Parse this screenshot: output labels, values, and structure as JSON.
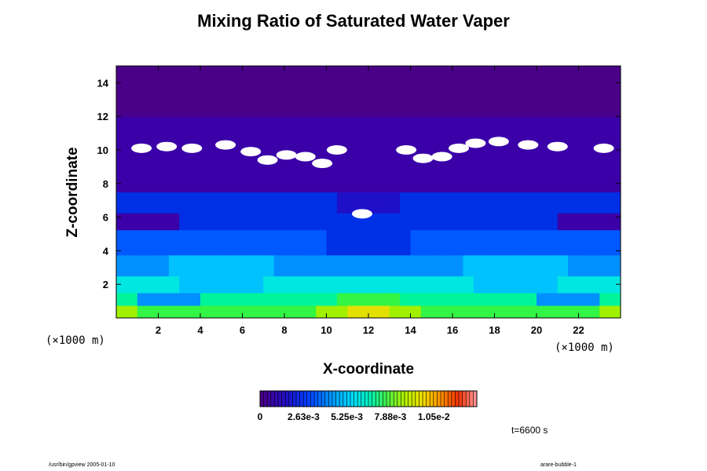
{
  "chart_data": {
    "type": "heatmap",
    "title": "Mixing Ratio of Saturated Water Vaper",
    "xlabel": "X-coordinate",
    "ylabel": "Z-coordinate",
    "x_unit": "(×1000 m)",
    "y_unit": "(×1000 m)",
    "xlim": [
      0,
      24
    ],
    "ylim": [
      0,
      15
    ],
    "x_ticks": [
      "2",
      "4",
      "6",
      "8",
      "10",
      "12",
      "14",
      "16",
      "18",
      "20",
      "22"
    ],
    "y_ticks": [
      "2",
      "4",
      "6",
      "8",
      "10",
      "12",
      "14"
    ],
    "colorbar": {
      "min": 0,
      "max": 0.0131,
      "labels": [
        "0",
        "2.63e-3",
        "5.25e-3",
        "7.88e-3",
        "1.05e-2"
      ]
    },
    "time_label": "t=6600 s",
    "footer_left": "/usr/bin/gpview 2005-01-10",
    "footer_right": "arare-bubble-1"
  }
}
